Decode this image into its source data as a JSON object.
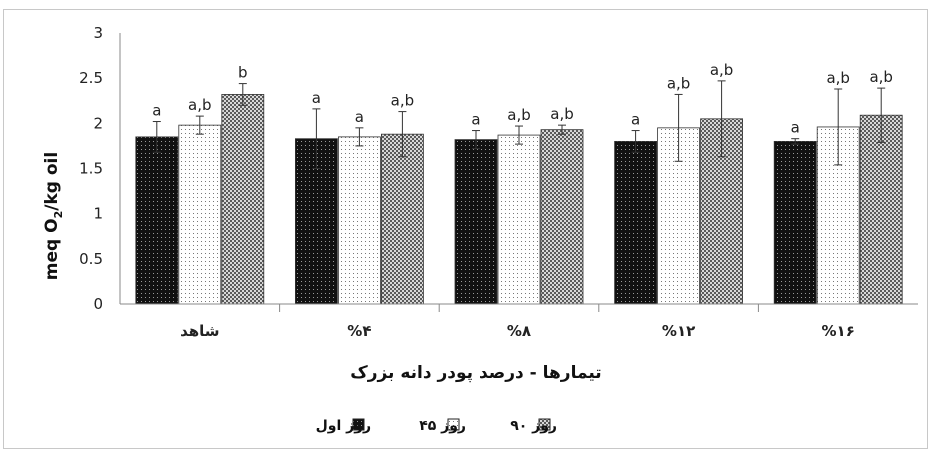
{
  "chart_data": {
    "type": "bar",
    "title": "",
    "xlabel": "تیمارها - درصد پودر دانه بزرک",
    "ylabel": "meq O2/kg oil",
    "ylim": [
      0,
      3
    ],
    "yticks": [
      "0",
      "0.5",
      "1",
      "1.5",
      "2",
      "2.5",
      "3"
    ],
    "categories": [
      "شاهد",
      "%۴",
      "%۸",
      "%۱۲",
      "%۱۶"
    ],
    "legend_position": "bottom",
    "grid": false,
    "series": [
      {
        "name": "روز اول",
        "pattern": "dark",
        "values": [
          1.85,
          1.83,
          1.82,
          1.8,
          1.8
        ],
        "errors": [
          0.17,
          0.33,
          0.1,
          0.12,
          0.03
        ],
        "labels": [
          "a",
          "a",
          "a",
          "a",
          "a"
        ]
      },
      {
        "name": "روز ۴۵",
        "pattern": "light",
        "values": [
          1.98,
          1.85,
          1.87,
          1.95,
          1.96
        ],
        "errors": [
          0.1,
          0.1,
          0.1,
          0.37,
          0.42
        ],
        "labels": [
          "a,b",
          "a",
          "a,b",
          "a,b",
          "a,b"
        ]
      },
      {
        "name": "روز ۹۰",
        "pattern": "checker",
        "values": [
          2.32,
          1.88,
          1.93,
          2.05,
          2.09
        ],
        "errors": [
          0.12,
          0.25,
          0.05,
          0.42,
          0.3
        ],
        "labels": [
          "b",
          "a,b",
          "a,b",
          "a,b",
          "a,b"
        ]
      }
    ]
  }
}
